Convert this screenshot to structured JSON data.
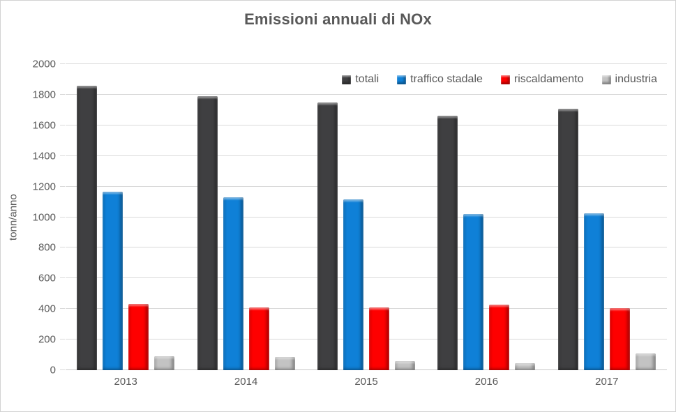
{
  "chart_data": {
    "type": "bar",
    "title": "Emissioni annuali di NOx",
    "xlabel": "",
    "ylabel": "tonn/anno",
    "categories": [
      "2013",
      "2014",
      "2015",
      "2016",
      "2017"
    ],
    "series": [
      {
        "name": "totali",
        "color": "#3F3F41",
        "values": [
          1860,
          1790,
          1750,
          1665,
          1710
        ]
      },
      {
        "name": "traffico stadale",
        "color": "#0F80D7",
        "values": [
          1165,
          1130,
          1115,
          1020,
          1025
        ]
      },
      {
        "name": "riscaldamento",
        "color": "#FE0000",
        "values": [
          435,
          410,
          410,
          430,
          405
        ]
      },
      {
        "name": "industria",
        "color": "#C3C3C3",
        "values": [
          90,
          85,
          60,
          45,
          110
        ]
      }
    ],
    "ylim": [
      0,
      2000
    ],
    "ytick_step": 200,
    "grid": true,
    "legend_position": "top-right"
  },
  "styles": {
    "text_color": "#595959",
    "grid_color": "#D9D9D9",
    "axis_line_color": "#C9C9C9",
    "background": "#FFFFFF",
    "border_color": "#D2D2D2"
  }
}
